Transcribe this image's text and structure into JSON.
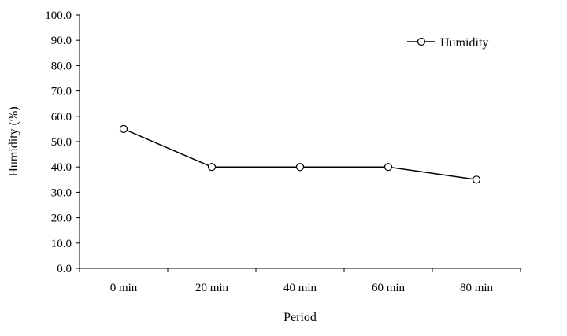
{
  "chart_data": {
    "type": "line",
    "title": "",
    "xlabel": "Period",
    "ylabel": "Humidity (%)",
    "categories": [
      "0 min",
      "20 min",
      "40 min",
      "60 min",
      "80 min"
    ],
    "series": [
      {
        "name": "Humidity",
        "values": [
          55,
          40,
          40,
          40,
          35
        ]
      }
    ],
    "ylim": [
      0,
      100
    ],
    "yticks": [
      "0.0",
      "10.0",
      "20.0",
      "30.0",
      "40.0",
      "50.0",
      "60.0",
      "70.0",
      "80.0",
      "90.0",
      "100.0"
    ],
    "grid": false,
    "legend_position": "top-right",
    "line_color": "#000000"
  }
}
